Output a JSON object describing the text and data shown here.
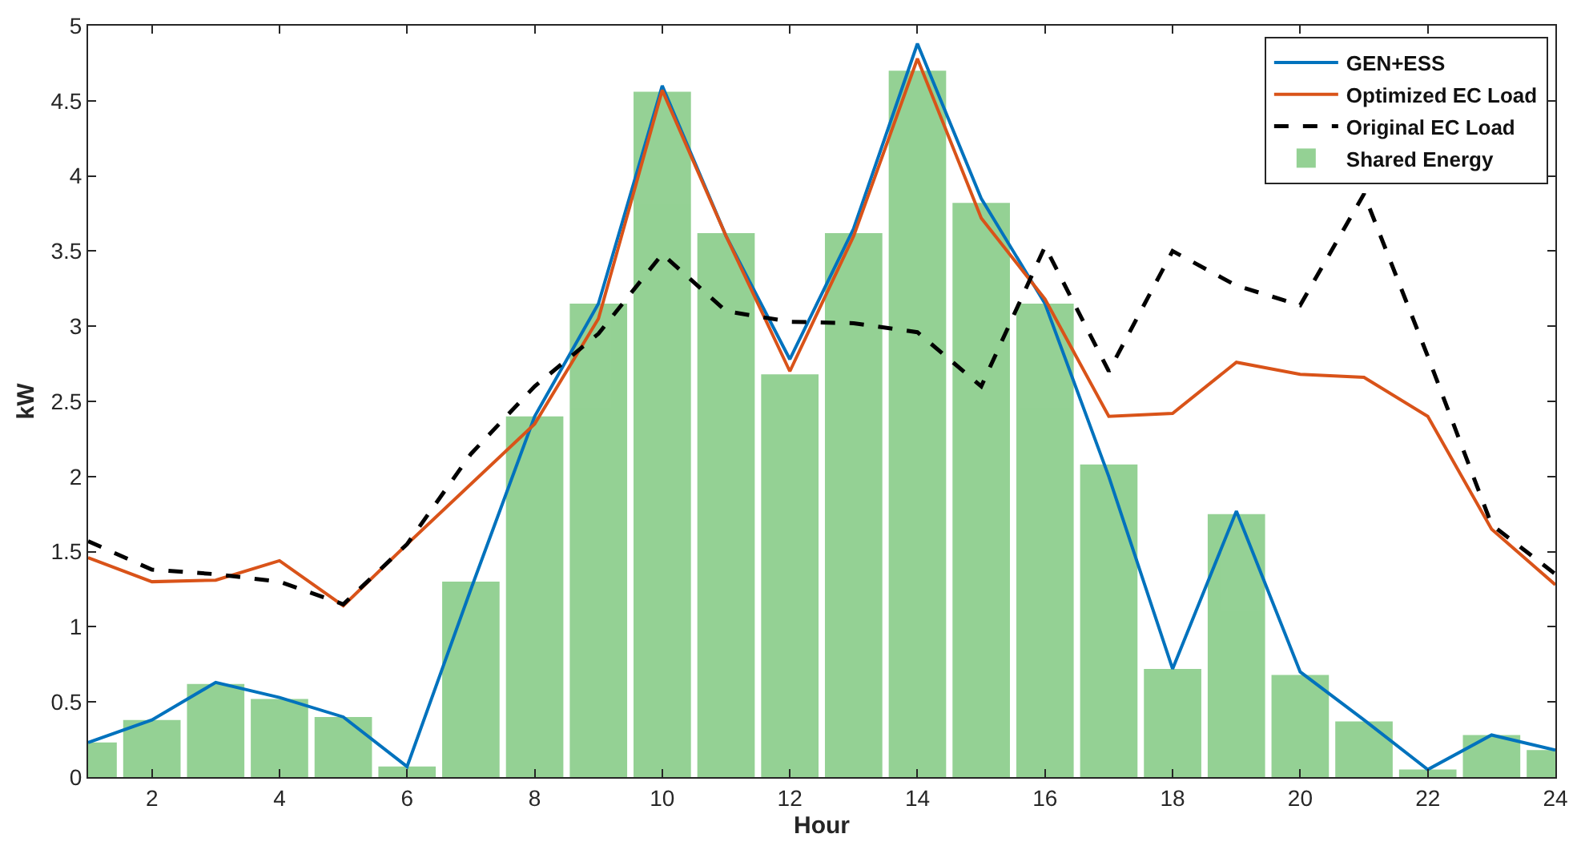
{
  "chart_data": {
    "type": "line",
    "xlabel": "Hour",
    "ylabel": "kW",
    "x": [
      1,
      2,
      3,
      4,
      5,
      6,
      7,
      8,
      9,
      10,
      11,
      12,
      13,
      14,
      15,
      16,
      17,
      18,
      19,
      20,
      21,
      22,
      23,
      24
    ],
    "series": [
      {
        "name": "GEN+ESS",
        "color": "#0072bd",
        "line_style": "solid",
        "values": [
          0.23,
          0.38,
          0.63,
          0.53,
          0.4,
          0.07,
          1.25,
          2.4,
          3.15,
          4.6,
          3.6,
          2.78,
          3.65,
          4.88,
          3.85,
          3.15,
          2.0,
          0.72,
          1.77,
          0.7,
          0.38,
          0.05,
          0.28,
          0.18
        ]
      },
      {
        "name": "Optimized EC Load",
        "color": "#d95319",
        "line_style": "solid",
        "values": [
          1.46,
          1.3,
          1.31,
          1.44,
          1.14,
          1.55,
          1.95,
          2.35,
          3.05,
          4.57,
          3.6,
          2.7,
          3.6,
          4.78,
          3.72,
          3.18,
          2.4,
          2.42,
          2.76,
          2.68,
          2.66,
          2.4,
          1.65,
          1.28
        ]
      },
      {
        "name": "Original EC Load",
        "color": "#000000",
        "line_style": "dashed",
        "values": [
          1.57,
          1.38,
          1.35,
          1.3,
          1.15,
          1.55,
          2.15,
          2.6,
          2.95,
          3.48,
          3.1,
          3.03,
          3.02,
          2.96,
          2.6,
          3.53,
          2.7,
          3.5,
          3.27,
          3.14,
          3.88,
          2.8,
          1.68,
          1.35
        ]
      },
      {
        "name": "Shared Energy",
        "color": "#8fcf8f",
        "type": "bar",
        "values": [
          0.23,
          0.38,
          0.62,
          0.52,
          0.4,
          0.07,
          1.3,
          2.4,
          3.15,
          4.56,
          3.62,
          2.68,
          3.62,
          4.7,
          3.82,
          3.15,
          2.08,
          0.72,
          1.75,
          0.68,
          0.37,
          0.05,
          0.28,
          0.18
        ]
      }
    ],
    "xlim": [
      1,
      24
    ],
    "xticks": [
      2,
      4,
      6,
      8,
      10,
      12,
      14,
      16,
      18,
      20,
      22,
      24
    ],
    "ylim": [
      0,
      5
    ],
    "yticks": [
      0,
      0.5,
      1,
      1.5,
      2,
      2.5,
      3,
      3.5,
      4,
      4.5,
      5
    ],
    "legend": "top right",
    "marker": "none"
  }
}
